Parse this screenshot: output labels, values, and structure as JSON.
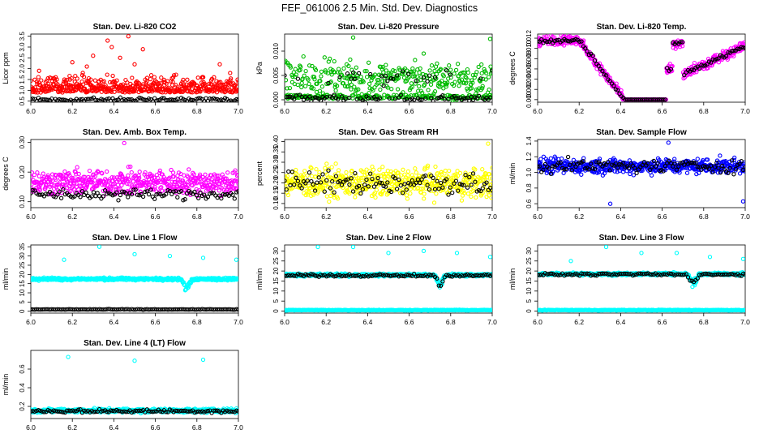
{
  "page_title": "FEF_061006  2.5 Min. Std. Dev. Diagnostics",
  "chart_data": [
    {
      "type": "scatter",
      "title": "Stan. Dev. Li-820 CO2",
      "ylabel": "Licor ppm",
      "xlim": [
        6.0,
        7.0
      ],
      "ylim": [
        0.45,
        3.6
      ],
      "yticks": [
        0.5,
        1.0,
        1.5,
        2.0,
        2.5,
        3.0,
        3.5
      ],
      "ytick_labels": [
        "0.5",
        "1.0",
        "1.5",
        "2.0",
        "2.5",
        "3.0",
        "3.5"
      ],
      "xticks": [
        6.0,
        6.2,
        6.4,
        6.6,
        6.8,
        7.0
      ],
      "xtick_labels": [
        "6.0",
        "6.2",
        "6.4",
        "6.6",
        "6.8",
        "7.0"
      ],
      "color": "#ff0000",
      "shape": "rise_fall",
      "base": 0.9,
      "spread": 0.55,
      "outliers": [
        [
          6.04,
          1.9
        ],
        [
          6.12,
          1.6
        ],
        [
          6.2,
          2.3
        ],
        [
          6.27,
          2.1
        ],
        [
          6.3,
          2.6
        ],
        [
          6.37,
          3.3
        ],
        [
          6.39,
          3.0
        ],
        [
          6.43,
          2.5
        ],
        [
          6.47,
          3.5
        ],
        [
          6.5,
          2.2
        ],
        [
          6.54,
          2.9
        ],
        [
          6.58,
          1.7
        ],
        [
          6.91,
          2.2
        ],
        [
          6.96,
          1.8
        ]
      ],
      "black": {
        "base": 0.57,
        "spread": 0.08
      }
    },
    {
      "type": "scatter",
      "title": "Stan. Dev. Li-820 Pressure",
      "ylabel": "kPa",
      "xlim": [
        6.0,
        7.0
      ],
      "ylim": [
        -0.0005,
        0.0135
      ],
      "yticks": [
        0.0,
        0.005,
        0.01
      ],
      "ytick_labels": [
        "0.000",
        "0.005",
        "0.010"
      ],
      "xticks": [
        6.0,
        6.2,
        6.4,
        6.6,
        6.8,
        7.0
      ],
      "xtick_labels": [
        "6.0",
        "6.2",
        "6.4",
        "6.6",
        "6.8",
        "7.0"
      ],
      "color": "#00bb00",
      "shape": "bimodal",
      "base": 0.0045,
      "spread": 0.003,
      "outliers": [
        [
          6.33,
          0.0128
        ],
        [
          6.67,
          0.0095
        ],
        [
          6.99,
          0.0125
        ]
      ],
      "black": {
        "base": 0.0003,
        "spread": 0.0005,
        "upper": 0.0045
      }
    },
    {
      "type": "scatter",
      "title": "Stan. Dev. Li-820 Temp.",
      "ylabel": "degrees C",
      "xlim": [
        6.0,
        7.0
      ],
      "ylim": [
        -0.0005,
        0.0128
      ],
      "yticks": [
        0.0,
        0.002,
        0.004,
        0.006,
        0.008,
        0.01,
        0.012
      ],
      "ytick_labels": [
        "0.000",
        "0.002",
        "0.004",
        "0.006",
        "0.008",
        "0.010",
        "0.012"
      ],
      "xticks": [
        6.0,
        6.2,
        6.4,
        6.6,
        6.8,
        7.0
      ],
      "xtick_labels": [
        "6.0",
        "6.2",
        "6.4",
        "6.6",
        "6.8",
        "7.0"
      ],
      "color": "#ff00ff",
      "shape": "temp_curve",
      "base": 0.0,
      "spread": 0.0008,
      "outliers": [],
      "black": {
        "base": 0.0,
        "spread": 0.0004
      }
    },
    {
      "type": "scatter",
      "title": "Stan. Dev. Amb. Box Temp.",
      "ylabel": "degrees C",
      "xlim": [
        6.0,
        7.0
      ],
      "ylim": [
        0.08,
        0.31
      ],
      "yticks": [
        0.1,
        0.2,
        0.3
      ],
      "ytick_labels": [
        "0.10",
        "0.20",
        "0.30"
      ],
      "xticks": [
        6.0,
        6.2,
        6.4,
        6.6,
        6.8,
        7.0
      ],
      "xtick_labels": [
        "6.0",
        "6.2",
        "6.4",
        "6.6",
        "6.8",
        "7.0"
      ],
      "color": "#ff00ff",
      "shape": "flat",
      "base": 0.165,
      "spread": 0.035,
      "outliers": [
        [
          6.45,
          0.298
        ]
      ],
      "black": {
        "base": 0.125,
        "spread": 0.015
      }
    },
    {
      "type": "scatter",
      "title": "Stan. Dev. Gas Stream RH",
      "ylabel": "percent",
      "xlim": [
        6.0,
        7.0
      ],
      "ylim": [
        0.08,
        0.41
      ],
      "yticks": [
        0.1,
        0.15,
        0.2,
        0.25,
        0.3,
        0.35,
        0.4
      ],
      "ytick_labels": [
        "0.10",
        "0.15",
        "0.20",
        "0.25",
        "0.30",
        "0.35",
        "0.40"
      ],
      "xticks": [
        6.0,
        6.2,
        6.4,
        6.6,
        6.8,
        7.0
      ],
      "xtick_labels": [
        "6.0",
        "6.2",
        "6.4",
        "6.6",
        "6.8",
        "7.0"
      ],
      "color": "#ffff00",
      "shape": "flat",
      "base": 0.2,
      "spread": 0.06,
      "outliers": [
        [
          6.98,
          0.39
        ]
      ],
      "black": {
        "base": 0.2,
        "spread": 0.05
      }
    },
    {
      "type": "scatter",
      "title": "Stan. Dev. Sample Flow",
      "ylabel": "ml/min",
      "xlim": [
        6.0,
        7.0
      ],
      "ylim": [
        0.55,
        1.42
      ],
      "yticks": [
        0.6,
        0.8,
        1.0,
        1.2,
        1.4
      ],
      "ytick_labels": [
        "0.6",
        "0.8",
        "1.0",
        "1.2",
        "1.4"
      ],
      "xticks": [
        6.0,
        6.2,
        6.4,
        6.6,
        6.8,
        7.0
      ],
      "xtick_labels": [
        "6.0",
        "6.2",
        "6.4",
        "6.6",
        "6.8",
        "7.0"
      ],
      "color": "#0000ff",
      "shape": "flat",
      "base": 1.08,
      "spread": 0.08,
      "outliers": [
        [
          6.63,
          1.38
        ],
        [
          6.35,
          0.6
        ],
        [
          6.99,
          0.63
        ]
      ],
      "black": {
        "base": 1.08,
        "spread": 0.07
      }
    },
    {
      "type": "scatter",
      "title": "Stan. Dev. Line 1 Flow",
      "ylabel": "ml/min",
      "xlim": [
        6.0,
        7.0
      ],
      "ylim": [
        -1,
        36
      ],
      "yticks": [
        0,
        5,
        10,
        15,
        20,
        25,
        30,
        35
      ],
      "ytick_labels": [
        "0",
        "5",
        "10",
        "15",
        "20",
        "25",
        "30",
        "35"
      ],
      "xticks": [
        6.0,
        6.2,
        6.4,
        6.6,
        6.8,
        7.0
      ],
      "xtick_labels": [
        "6.0",
        "6.2",
        "6.4",
        "6.6",
        "6.8",
        "7.0"
      ],
      "color": "#00ffff",
      "shape": "dip",
      "base": 17.5,
      "spread": 0.6,
      "outliers": [
        [
          6.16,
          28
        ],
        [
          6.33,
          35
        ],
        [
          6.5,
          31
        ],
        [
          6.67,
          30
        ],
        [
          6.83,
          29
        ],
        [
          6.99,
          28
        ]
      ],
      "black": {
        "base": 1.0,
        "spread": 0.15
      }
    },
    {
      "type": "scatter",
      "title": "Stan. Dev. Line 2 Flow",
      "ylabel": "ml/min",
      "xlim": [
        6.0,
        7.0
      ],
      "ylim": [
        -1,
        33
      ],
      "yticks": [
        0,
        5,
        10,
        15,
        20,
        25,
        30
      ],
      "ytick_labels": [
        "0",
        "5",
        "10",
        "15",
        "20",
        "25",
        "30"
      ],
      "xticks": [
        6.0,
        6.2,
        6.4,
        6.6,
        6.8,
        7.0
      ],
      "xtick_labels": [
        "6.0",
        "6.2",
        "6.4",
        "6.6",
        "6.8",
        "7.0"
      ],
      "color": "#00ffff",
      "shape": "dip",
      "base": 18.0,
      "spread": 0.6,
      "outliers": [
        [
          6.16,
          32
        ],
        [
          6.33,
          32
        ],
        [
          6.5,
          29
        ],
        [
          6.67,
          30
        ],
        [
          6.83,
          29
        ],
        [
          6.99,
          27
        ]
      ],
      "black": {
        "base": 17.8,
        "spread": 0.5,
        "follow": true
      },
      "cyan_floor": 0.5
    },
    {
      "type": "scatter",
      "title": "Stan. Dev. Line 3 Flow",
      "ylabel": "ml/min",
      "xlim": [
        6.0,
        7.0
      ],
      "ylim": [
        -1,
        33
      ],
      "yticks": [
        0,
        5,
        10,
        15,
        20,
        25,
        30
      ],
      "ytick_labels": [
        "0",
        "5",
        "10",
        "15",
        "20",
        "25",
        "30"
      ],
      "xticks": [
        6.0,
        6.2,
        6.4,
        6.6,
        6.8,
        7.0
      ],
      "xtick_labels": [
        "6.0",
        "6.2",
        "6.4",
        "6.6",
        "6.8",
        "7.0"
      ],
      "color": "#00ffff",
      "shape": "dip",
      "base": 18.5,
      "spread": 0.6,
      "outliers": [
        [
          6.16,
          25
        ],
        [
          6.33,
          32
        ],
        [
          6.5,
          29
        ],
        [
          6.67,
          29
        ],
        [
          6.83,
          27
        ],
        [
          6.99,
          26
        ]
      ],
      "black": {
        "base": 18.3,
        "spread": 0.5,
        "follow": true
      },
      "cyan_floor": 0.5
    },
    {
      "type": "scatter",
      "title": "Stan. Dev. Line 4 (LT) Flow",
      "ylabel": "ml/min",
      "xlim": [
        6.0,
        7.0
      ],
      "ylim": [
        0.07,
        0.8
      ],
      "yticks": [
        0.2,
        0.4,
        0.6
      ],
      "ytick_labels": [
        "0.2",
        "0.4",
        "0.6"
      ],
      "xticks": [
        6.0,
        6.2,
        6.4,
        6.6,
        6.8,
        7.0
      ],
      "xtick_labels": [
        "6.0",
        "6.2",
        "6.4",
        "6.6",
        "6.8",
        "7.0"
      ],
      "color": "#00ffff",
      "shape": "flat",
      "base": 0.155,
      "spread": 0.018,
      "outliers": [
        [
          6.18,
          0.73
        ],
        [
          6.5,
          0.69
        ],
        [
          6.83,
          0.7
        ]
      ],
      "black": {
        "base": 0.15,
        "spread": 0.015
      }
    }
  ]
}
